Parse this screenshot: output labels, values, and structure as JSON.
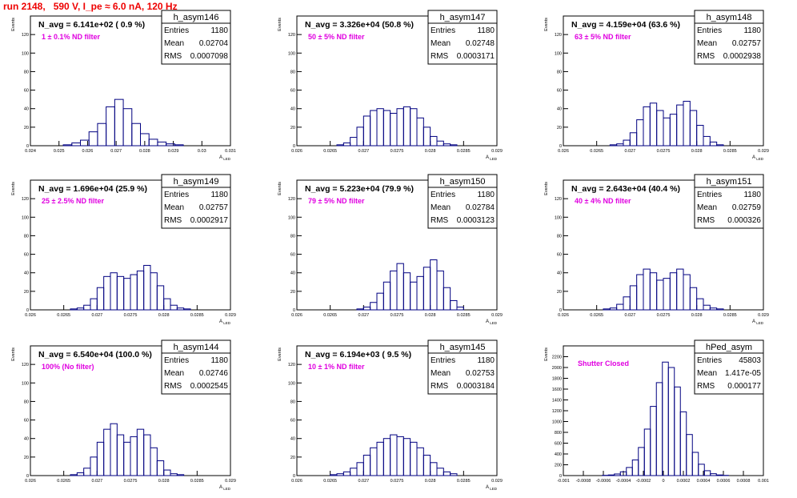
{
  "page_title": "run 2148,   590 V, I_pe ≈ 6.0 nA, 120 Hz",
  "colors": {
    "title": "#ee0000",
    "histogram": "#000080",
    "annotation": "#e000e0",
    "frame": "#000000"
  },
  "chart_data": [
    {
      "type": "bar",
      "name": "h_asym146",
      "ylabel": "Events",
      "xlabel": "A_{LED}",
      "xlim": [
        0.024,
        0.031
      ],
      "ylim": [
        0,
        140
      ],
      "xticks": [
        0.024,
        0.025,
        0.026,
        0.027,
        0.028,
        0.029,
        0.03,
        0.031
      ],
      "xtick_labels": [
        "0.024",
        "0.025",
        "0.026",
        "0.027",
        "0.028",
        "0.029",
        "0.03",
        "0.031"
      ],
      "yticks": [
        0,
        20,
        40,
        60,
        80,
        100,
        120
      ],
      "ytick_labels": [
        "0",
        "20",
        "40",
        "60",
        "80",
        "100",
        "120"
      ],
      "nav": "N_avg = 6.141e+02 ( 0.9 %)",
      "filter": "1 ± 0.1% ND filter",
      "stats": {
        "entries": "1180",
        "mean": "0.02704",
        "rms": "0.0007098"
      },
      "x": [
        0.0253,
        0.0256,
        0.0259,
        0.0262,
        0.0265,
        0.0268,
        0.0271,
        0.0274,
        0.0277,
        0.028,
        0.0283,
        0.0286,
        0.0289,
        0.0292
      ],
      "counts": [
        1,
        3,
        6,
        15,
        24,
        42,
        50,
        40,
        24,
        13,
        7,
        4,
        2,
        1
      ]
    },
    {
      "type": "bar",
      "name": "h_asym147",
      "ylabel": "Events",
      "xlabel": "A_{LED}",
      "xlim": [
        0.026,
        0.029
      ],
      "ylim": [
        0,
        140
      ],
      "xticks": [
        0.026,
        0.0265,
        0.027,
        0.0275,
        0.028,
        0.0285,
        0.029
      ],
      "xtick_labels": [
        "0.026",
        "0.0265",
        "0.027",
        "0.0275",
        "0.028",
        "0.0285",
        "0.029"
      ],
      "yticks": [
        0,
        20,
        40,
        60,
        80,
        100,
        120
      ],
      "ytick_labels": [
        "0",
        "20",
        "40",
        "60",
        "80",
        "100",
        "120"
      ],
      "nav": "N_avg = 3.326e+04 (50.8 %)",
      "filter": "50 ± 5% ND filter",
      "stats": {
        "entries": "1180",
        "mean": "0.02748",
        "rms": "0.0003171"
      },
      "x": [
        0.02665,
        0.02675,
        0.02685,
        0.02695,
        0.02705,
        0.02715,
        0.02725,
        0.02735,
        0.02745,
        0.02755,
        0.02765,
        0.02775,
        0.02785,
        0.02795,
        0.02805,
        0.02815,
        0.02825,
        0.02835
      ],
      "counts": [
        1,
        3,
        9,
        20,
        32,
        38,
        40,
        38,
        35,
        40,
        42,
        40,
        30,
        20,
        10,
        5,
        2,
        1
      ]
    },
    {
      "type": "bar",
      "name": "h_asym148",
      "ylabel": "Events",
      "xlabel": "A_{LED}",
      "xlim": [
        0.026,
        0.029
      ],
      "ylim": [
        0,
        140
      ],
      "xticks": [
        0.026,
        0.0265,
        0.027,
        0.0275,
        0.028,
        0.0285,
        0.029
      ],
      "xtick_labels": [
        "0.026",
        "0.0265",
        "0.027",
        "0.0275",
        "0.028",
        "0.0285",
        "0.029"
      ],
      "yticks": [
        0,
        20,
        40,
        60,
        80,
        100,
        120
      ],
      "ytick_labels": [
        "0",
        "20",
        "40",
        "60",
        "80",
        "100",
        "120"
      ],
      "nav": "N_avg = 4.159e+04 (63.6 %)",
      "filter": "63 ± 5% ND filter",
      "stats": {
        "entries": "1180",
        "mean": "0.02757",
        "rms": "0.0002938"
      },
      "x": [
        0.02675,
        0.02685,
        0.02695,
        0.02705,
        0.02715,
        0.02725,
        0.02735,
        0.02745,
        0.02755,
        0.02765,
        0.02775,
        0.02785,
        0.02795,
        0.02805,
        0.02815,
        0.02825,
        0.02835
      ],
      "counts": [
        1,
        2,
        6,
        14,
        28,
        42,
        46,
        38,
        30,
        34,
        44,
        48,
        38,
        22,
        10,
        4,
        1
      ]
    },
    {
      "type": "bar",
      "name": "h_asym149",
      "ylabel": "Events",
      "xlabel": "A_{LED}",
      "xlim": [
        0.026,
        0.029
      ],
      "ylim": [
        0,
        140
      ],
      "xticks": [
        0.026,
        0.0265,
        0.027,
        0.0275,
        0.028,
        0.0285,
        0.029
      ],
      "xtick_labels": [
        "0.026",
        "0.0265",
        "0.027",
        "0.0275",
        "0.028",
        "0.0285",
        "0.029"
      ],
      "yticks": [
        0,
        20,
        40,
        60,
        80,
        100,
        120
      ],
      "ytick_labels": [
        "0",
        "20",
        "40",
        "60",
        "80",
        "100",
        "120"
      ],
      "nav": "N_avg = 1.696e+04 (25.9 %)",
      "filter": "25 ± 2.5% ND filter",
      "stats": {
        "entries": "1180",
        "mean": "0.02757",
        "rms": "0.0002917"
      },
      "x": [
        0.02665,
        0.02675,
        0.02685,
        0.02695,
        0.02705,
        0.02715,
        0.02725,
        0.02735,
        0.02745,
        0.02755,
        0.02765,
        0.02775,
        0.02785,
        0.02795,
        0.02805,
        0.02815,
        0.02825,
        0.02835
      ],
      "counts": [
        1,
        2,
        5,
        12,
        24,
        36,
        40,
        36,
        34,
        38,
        42,
        48,
        40,
        26,
        12,
        5,
        2,
        1
      ]
    },
    {
      "type": "bar",
      "name": "h_asym150",
      "ylabel": "Events",
      "xlabel": "A_{LED}",
      "xlim": [
        0.026,
        0.029
      ],
      "ylim": [
        0,
        140
      ],
      "xticks": [
        0.026,
        0.0265,
        0.027,
        0.0275,
        0.028,
        0.0285,
        0.029
      ],
      "xtick_labels": [
        "0.026",
        "0.0265",
        "0.027",
        "0.0275",
        "0.028",
        "0.0285",
        "0.029"
      ],
      "yticks": [
        0,
        20,
        40,
        60,
        80,
        100,
        120
      ],
      "ytick_labels": [
        "0",
        "20",
        "40",
        "60",
        "80",
        "100",
        "120"
      ],
      "nav": "N_avg = 5.223e+04 (79.9 %)",
      "filter": "79 ± 5% ND filter",
      "stats": {
        "entries": "1180",
        "mean": "0.02784",
        "rms": "0.0003123"
      },
      "x": [
        0.02695,
        0.02705,
        0.02715,
        0.02725,
        0.02735,
        0.02745,
        0.02755,
        0.02765,
        0.02775,
        0.02785,
        0.02795,
        0.02805,
        0.02815,
        0.02825,
        0.02835,
        0.02845
      ],
      "counts": [
        1,
        3,
        8,
        18,
        30,
        42,
        50,
        40,
        30,
        36,
        46,
        54,
        42,
        24,
        10,
        3
      ]
    },
    {
      "type": "bar",
      "name": "h_asym151",
      "ylabel": "Events",
      "xlabel": "A_{LED}",
      "xlim": [
        0.026,
        0.029
      ],
      "ylim": [
        0,
        140
      ],
      "xticks": [
        0.026,
        0.0265,
        0.027,
        0.0275,
        0.028,
        0.0285,
        0.029
      ],
      "xtick_labels": [
        "0.026",
        "0.0265",
        "0.027",
        "0.0275",
        "0.028",
        "0.0285",
        "0.029"
      ],
      "yticks": [
        0,
        20,
        40,
        60,
        80,
        100,
        120
      ],
      "ytick_labels": [
        "0",
        "20",
        "40",
        "60",
        "80",
        "100",
        "120"
      ],
      "nav": "N_avg = 2.643e+04 (40.4 %)",
      "filter": "40 ± 4% ND filter",
      "stats": {
        "entries": "1180",
        "mean": "0.02759",
        "rms": "0.000326"
      },
      "x": [
        0.02665,
        0.02675,
        0.02685,
        0.02695,
        0.02705,
        0.02715,
        0.02725,
        0.02735,
        0.02745,
        0.02755,
        0.02765,
        0.02775,
        0.02785,
        0.02795,
        0.02805,
        0.02815,
        0.02825,
        0.02835
      ],
      "counts": [
        1,
        2,
        6,
        14,
        26,
        38,
        44,
        40,
        32,
        34,
        40,
        44,
        38,
        24,
        12,
        5,
        2,
        1
      ]
    },
    {
      "type": "bar",
      "name": "h_asym144",
      "ylabel": "Events",
      "xlabel": "A_{LED}",
      "xlim": [
        0.026,
        0.029
      ],
      "ylim": [
        0,
        140
      ],
      "xticks": [
        0.026,
        0.0265,
        0.027,
        0.0275,
        0.028,
        0.0285,
        0.029
      ],
      "xtick_labels": [
        "0.026",
        "0.0265",
        "0.027",
        "0.0275",
        "0.028",
        "0.0285",
        "0.029"
      ],
      "yticks": [
        0,
        20,
        40,
        60,
        80,
        100,
        120
      ],
      "ytick_labels": [
        "0",
        "20",
        "40",
        "60",
        "80",
        "100",
        "120"
      ],
      "nav": "N_avg = 6.540e+04 (100.0 %)",
      "filter": "100% (No filter)",
      "stats": {
        "entries": "1180",
        "mean": "0.02746",
        "rms": "0.0002545"
      },
      "x": [
        0.02665,
        0.02675,
        0.02685,
        0.02695,
        0.02705,
        0.02715,
        0.02725,
        0.02735,
        0.02745,
        0.02755,
        0.02765,
        0.02775,
        0.02785,
        0.02795,
        0.02805,
        0.02815,
        0.02825
      ],
      "counts": [
        1,
        3,
        8,
        20,
        36,
        50,
        56,
        44,
        36,
        42,
        50,
        44,
        30,
        16,
        6,
        2,
        1
      ]
    },
    {
      "type": "bar",
      "name": "h_asym145",
      "ylabel": "Events",
      "xlabel": "A_{LED}",
      "xlim": [
        0.026,
        0.029
      ],
      "ylim": [
        0,
        140
      ],
      "xticks": [
        0.026,
        0.0265,
        0.027,
        0.0275,
        0.028,
        0.0285,
        0.029
      ],
      "xtick_labels": [
        "0.026",
        "0.0265",
        "0.027",
        "0.0275",
        "0.028",
        "0.0285",
        "0.029"
      ],
      "yticks": [
        0,
        20,
        40,
        60,
        80,
        100,
        120
      ],
      "ytick_labels": [
        "0",
        "20",
        "40",
        "60",
        "80",
        "100",
        "120"
      ],
      "nav": "N_avg = 6.194e+03 ( 9.5 %)",
      "filter": "10 ± 1% ND filter",
      "stats": {
        "entries": "1180",
        "mean": "0.02753",
        "rms": "0.0003184"
      },
      "x": [
        0.02655,
        0.02665,
        0.02675,
        0.02685,
        0.02695,
        0.02705,
        0.02715,
        0.02725,
        0.02735,
        0.02745,
        0.02755,
        0.02765,
        0.02775,
        0.02785,
        0.02795,
        0.02805,
        0.02815,
        0.02825,
        0.02835
      ],
      "counts": [
        1,
        2,
        4,
        8,
        14,
        22,
        30,
        36,
        40,
        44,
        42,
        40,
        36,
        30,
        22,
        14,
        8,
        4,
        2
      ]
    },
    {
      "type": "bar",
      "name": "hPed_asym",
      "ylabel": "Events",
      "xlabel": "",
      "xlim": [
        -0.001,
        0.001
      ],
      "ylim": [
        0,
        2400
      ],
      "xticks": [
        -0.001,
        -0.0008,
        -0.0006,
        -0.0004,
        -0.0002,
        0,
        0.0002,
        0.0004,
        0.0006,
        0.0008,
        0.001
      ],
      "xtick_labels": [
        "-0.001",
        "-0.0008",
        "-0.0006",
        "-0.0004",
        "-0.0002",
        "0",
        "0.0002",
        "0.0004",
        "0.0006",
        "0.0008",
        "0.001"
      ],
      "yticks": [
        0,
        200,
        400,
        600,
        800,
        1000,
        1200,
        1400,
        1600,
        1800,
        2000,
        2200
      ],
      "ytick_labels": [
        "0",
        "200",
        "400",
        "600",
        "800",
        "1000",
        "1200",
        "1400",
        "1600",
        "1800",
        "2000",
        "2200"
      ],
      "nav": "",
      "filter": "Shutter Closed",
      "stats": {
        "entries": "45803",
        "mean": "1.417e-05",
        "rms": "0.000177"
      },
      "x": [
        -0.00058,
        -0.00052,
        -0.00046,
        -0.0004,
        -0.00034,
        -0.00028,
        -0.00022,
        -0.00016,
        -0.0001,
        -4e-05,
        2e-05,
        8e-05,
        0.00014,
        0.0002,
        0.00026,
        0.00032,
        0.00038,
        0.00044,
        0.0005,
        0.00056,
        0.00062
      ],
      "counts": [
        5,
        12,
        30,
        70,
        150,
        290,
        520,
        860,
        1280,
        1720,
        2100,
        2000,
        1640,
        1180,
        760,
        430,
        210,
        90,
        35,
        12,
        4
      ]
    }
  ]
}
